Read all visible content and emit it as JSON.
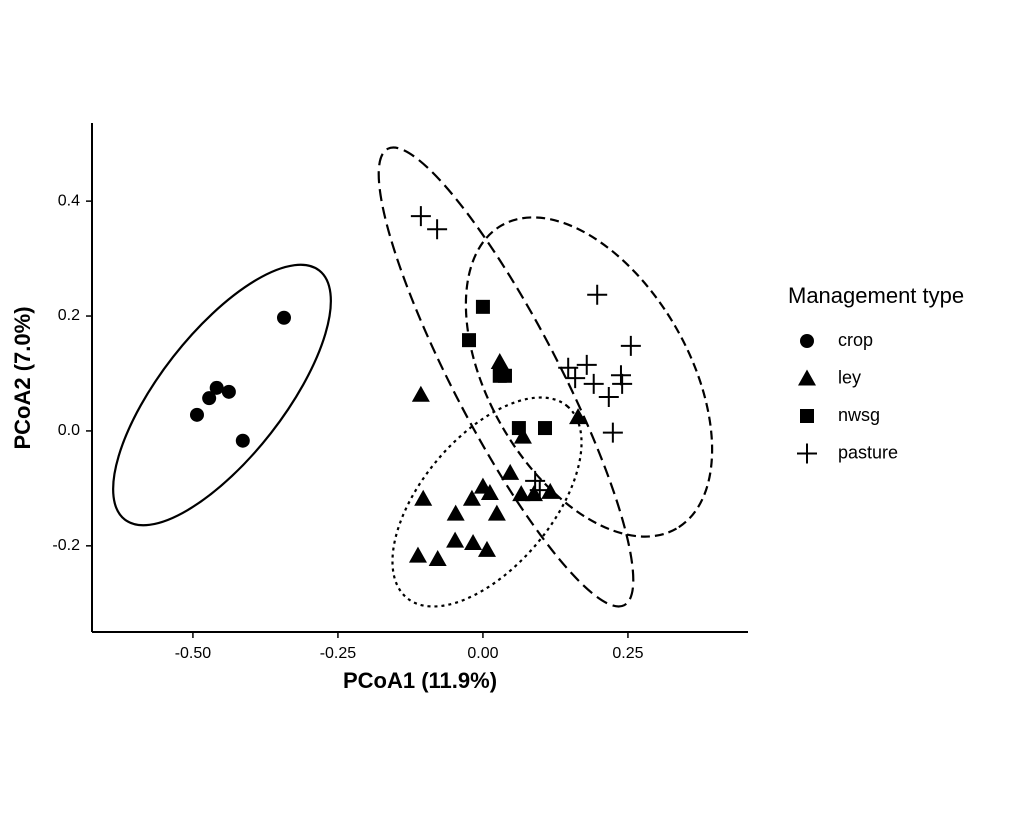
{
  "chart_data": {
    "type": "scatter",
    "xlabel": "PCoA1 (11.9%)",
    "ylabel": "PCoA2 (7.0%)",
    "legend_title": "Management type",
    "legend": "right",
    "xlim": [
      -0.674,
      0.457
    ],
    "ylim": [
      -0.35,
      0.536
    ],
    "xticks": [
      {
        "value": -0.5,
        "label": "-0.50"
      },
      -0.25,
      {
        "value": 0,
        "label": "0.00"
      },
      0.25
    ],
    "yticks": [
      -0.2,
      {
        "value": 0,
        "label": "0.0"
      },
      0.2,
      0.4
    ],
    "series": [
      {
        "name": "crop",
        "marker": "circle",
        "color": "#000000",
        "x": [
          -0.343,
          -0.493,
          -0.472,
          -0.459,
          -0.438,
          -0.414
        ],
        "values": [
          0.197,
          0.028,
          0.057,
          0.075,
          0.068,
          -0.017
        ]
      },
      {
        "name": "ley",
        "marker": "triangle",
        "color": "#000000",
        "x": [
          -0.107,
          -0.103,
          -0.112,
          -0.078,
          -0.047,
          -0.048,
          -0.017,
          0.007,
          -0.019,
          0.0,
          0.012,
          0.024,
          0.029,
          0.047,
          0.066,
          0.069,
          0.088,
          0.116,
          0.164
        ],
        "values": [
          0.063,
          -0.118,
          -0.217,
          -0.223,
          -0.144,
          -0.191,
          -0.195,
          -0.207,
          -0.118,
          -0.097,
          -0.108,
          -0.144,
          0.12,
          -0.073,
          -0.11,
          -0.01,
          -0.11,
          -0.106,
          0.024
        ]
      },
      {
        "name": "nwsg",
        "marker": "square",
        "color": "#000000",
        "x": [
          0.0,
          -0.024,
          0.038,
          0.029,
          0.062,
          0.107
        ],
        "values": [
          0.216,
          0.158,
          0.096,
          0.096,
          0.005,
          0.005
        ]
      },
      {
        "name": "pasture",
        "marker": "plus",
        "color": "#000000",
        "x": [
          -0.107,
          -0.079,
          0.197,
          0.255,
          0.147,
          0.179,
          0.159,
          0.191,
          0.238,
          0.24,
          0.217,
          0.224,
          0.09,
          0.098
        ],
        "values": [
          0.374,
          0.351,
          0.237,
          0.148,
          0.11,
          0.115,
          0.092,
          0.082,
          0.097,
          0.082,
          0.059,
          -0.003,
          -0.087,
          -0.103
        ]
      }
    ]
  }
}
